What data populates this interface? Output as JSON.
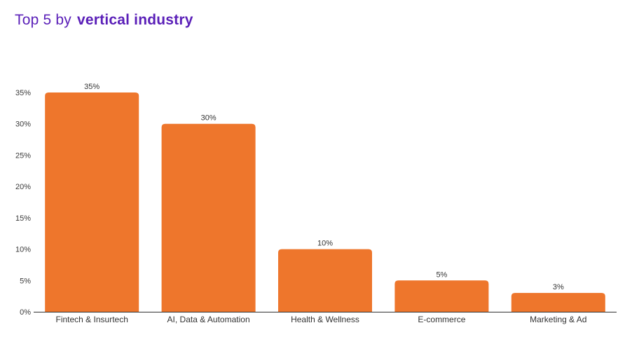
{
  "title": {
    "prefix": "Top 5 by",
    "emphasis": "vertical industry"
  },
  "colors": {
    "bar": "#ee762c",
    "title": "#5a1fb8",
    "axis": "#333333"
  },
  "chart_data": {
    "type": "bar",
    "categories": [
      "Fintech & Insurtech",
      "AI, Data & Automation",
      "Health & Wellness",
      "E-commerce",
      "Marketing & Ad"
    ],
    "values": [
      35,
      30,
      10,
      5,
      3
    ],
    "data_labels": [
      "35%",
      "30%",
      "10%",
      "5%",
      "3%"
    ],
    "y_ticks": [
      0,
      5,
      10,
      15,
      20,
      25,
      30,
      35
    ],
    "y_tick_labels": [
      "0%",
      "5%",
      "10%",
      "15%",
      "20%",
      "25%",
      "30%",
      "35%"
    ],
    "ylim": [
      0,
      35
    ],
    "grid": false,
    "legend": "none"
  }
}
